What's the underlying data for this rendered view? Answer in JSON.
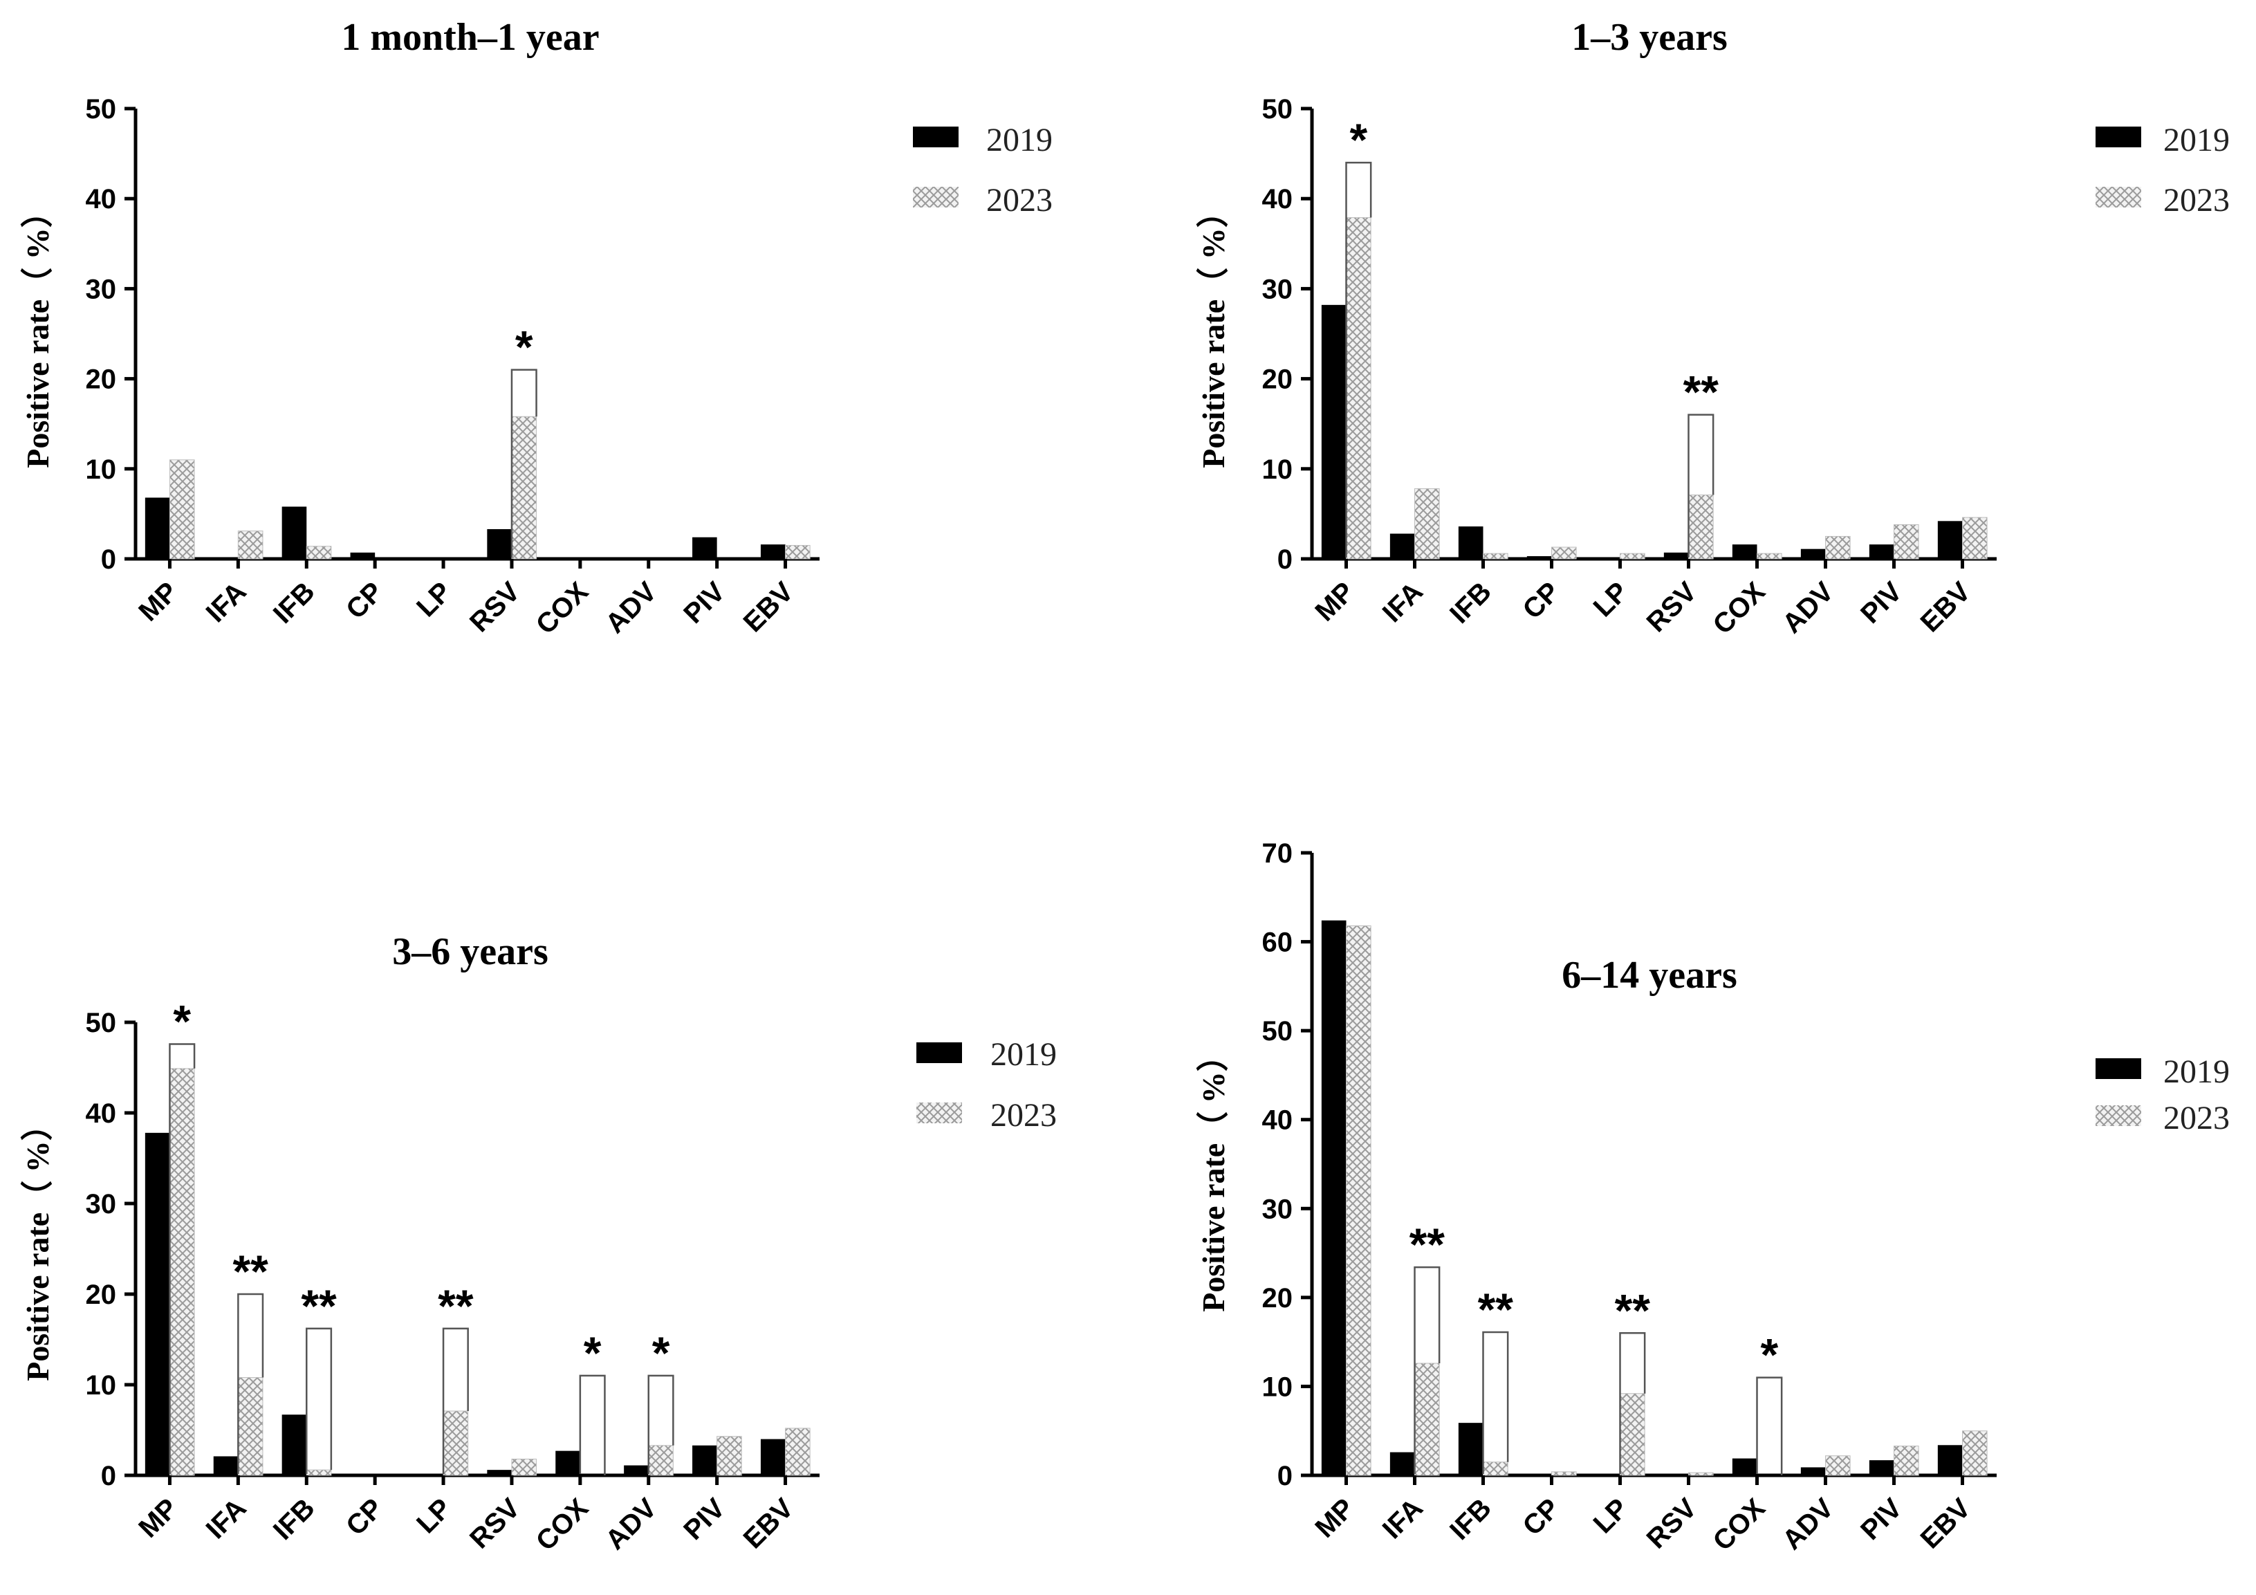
{
  "figure": {
    "legend_labels": [
      "2019",
      "2023"
    ],
    "colors": {
      "y2019": "#000000",
      "y2023_pattern": "#9a9a9a",
      "outline": "#555555"
    }
  },
  "chart_data": [
    {
      "type": "bar",
      "title": "1 month–1 year",
      "ylabel": "Positive rate（ %）",
      "xlabel": "",
      "ylim": [
        0,
        50
      ],
      "yticks": [
        0,
        10,
        20,
        30,
        40,
        50
      ],
      "categories": [
        "MP",
        "IFA",
        "IFB",
        "CP",
        "LP",
        "RSV",
        "COX",
        "ADV",
        "PIV",
        "EBV"
      ],
      "series": [
        {
          "name": "2019",
          "values": [
            6.8,
            0,
            5.8,
            0.7,
            0,
            3.3,
            0,
            0,
            2.4,
            1.6
          ]
        },
        {
          "name": "2023",
          "values": [
            11.0,
            3.1,
            1.4,
            0,
            0,
            15.8,
            0,
            0,
            0,
            1.5
          ]
        }
      ],
      "significance": [
        {
          "category": "RSV",
          "label": "*",
          "bracket_top": 21
        }
      ],
      "legend_position": "right"
    },
    {
      "type": "bar",
      "title": "1–3 years",
      "ylabel": "Positive rate（ %）",
      "xlabel": "",
      "ylim": [
        0,
        50
      ],
      "yticks": [
        0,
        10,
        20,
        30,
        40,
        50
      ],
      "categories": [
        "MP",
        "IFA",
        "IFB",
        "CP",
        "LP",
        "RSV",
        "COX",
        "ADV",
        "PIV",
        "EBV"
      ],
      "series": [
        {
          "name": "2019",
          "values": [
            28.2,
            2.8,
            3.6,
            0.3,
            0,
            0.7,
            1.6,
            1.1,
            1.6,
            4.2
          ]
        },
        {
          "name": "2023",
          "values": [
            37.9,
            7.8,
            0.6,
            1.3,
            0.6,
            7.1,
            0.6,
            2.5,
            3.8,
            4.6
          ]
        }
      ],
      "significance": [
        {
          "category": "MP",
          "label": "*",
          "bracket_top": 44
        },
        {
          "category": "RSV",
          "label": "**",
          "bracket_top": 16
        }
      ],
      "legend_position": "right"
    },
    {
      "type": "bar",
      "title": "3–6 years",
      "ylabel": "Positive rate（ %）",
      "xlabel": "",
      "ylim": [
        0,
        50
      ],
      "yticks": [
        0,
        10,
        20,
        30,
        40,
        50
      ],
      "categories": [
        "MP",
        "IFA",
        "IFB",
        "CP",
        "LP",
        "RSV",
        "COX",
        "ADV",
        "PIV",
        "EBV"
      ],
      "series": [
        {
          "name": "2019",
          "values": [
            37.8,
            2.1,
            6.7,
            0,
            0,
            0.6,
            2.7,
            1.1,
            3.3,
            4.0
          ]
        },
        {
          "name": "2023",
          "values": [
            44.9,
            10.8,
            0.6,
            0,
            7.1,
            1.8,
            0,
            3.3,
            4.3,
            5.2
          ]
        }
      ],
      "significance": [
        {
          "category": "MP",
          "label": "*",
          "bracket_top": 47.6
        },
        {
          "category": "IFA",
          "label": "**",
          "bracket_top": 20
        },
        {
          "category": "IFB",
          "label": "**",
          "bracket_top": 16.2
        },
        {
          "category": "LP",
          "label": "**",
          "bracket_top": 16.2
        },
        {
          "category": "COX",
          "label": "*",
          "bracket_top": 11
        },
        {
          "category": "ADV",
          "label": "*",
          "bracket_top": 11
        }
      ],
      "legend_position": "right"
    },
    {
      "type": "bar",
      "title": "6–14 years",
      "ylabel": "Positive rate（ %）",
      "xlabel": "",
      "ylim": [
        0,
        70
      ],
      "yticks": [
        0,
        10,
        20,
        30,
        40,
        50,
        60,
        70
      ],
      "categories": [
        "MP",
        "IFA",
        "IFB",
        "CP",
        "LP",
        "RSV",
        "COX",
        "ADV",
        "PIV",
        "EBV"
      ],
      "series": [
        {
          "name": "2019",
          "values": [
            62.4,
            2.6,
            5.9,
            0,
            0,
            0,
            1.9,
            0.9,
            1.7,
            3.4
          ]
        },
        {
          "name": "2023",
          "values": [
            61.8,
            12.6,
            1.5,
            0.4,
            9.2,
            0.3,
            0,
            2.2,
            3.3,
            5.0
          ]
        }
      ],
      "significance": [
        {
          "category": "IFA",
          "label": "**",
          "bracket_top": 23.4
        },
        {
          "category": "IFB",
          "label": "**",
          "bracket_top": 16.1
        },
        {
          "category": "LP",
          "label": "**",
          "bracket_top": 16
        },
        {
          "category": "COX",
          "label": "*",
          "bracket_top": 11
        }
      ],
      "legend_position": "right"
    }
  ]
}
